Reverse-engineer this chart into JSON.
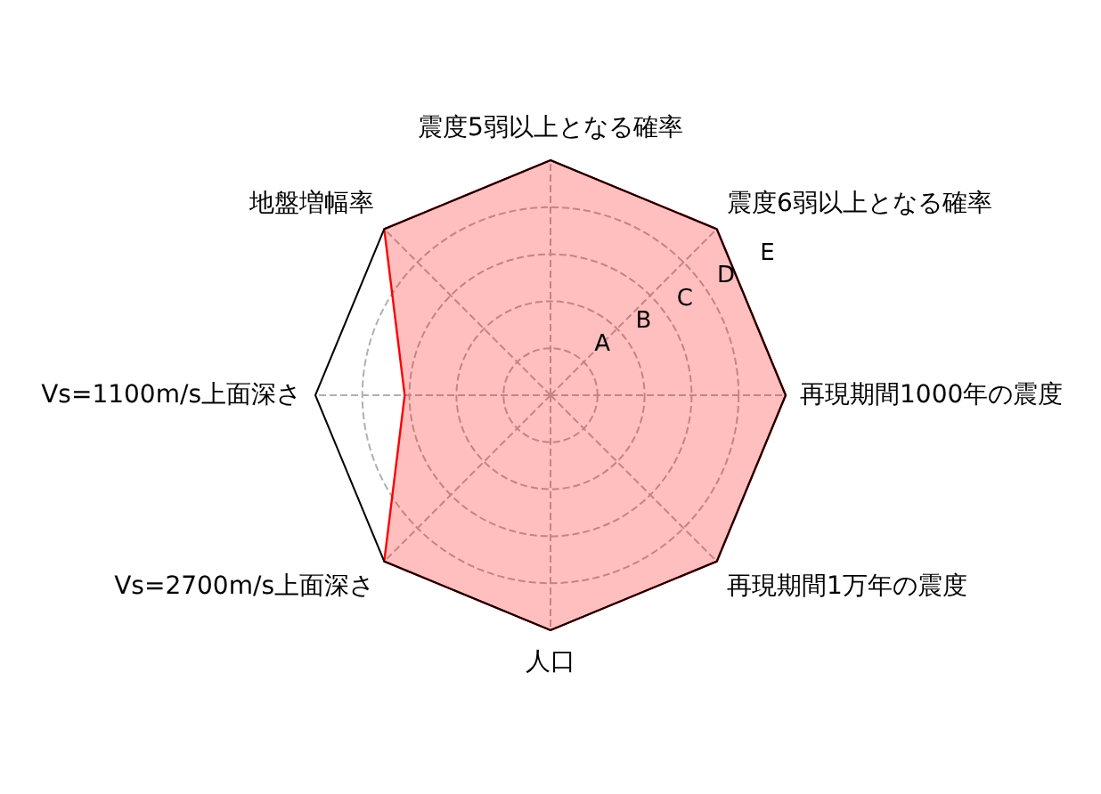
{
  "chart_data": {
    "type": "radar",
    "categories": [
      "震度5弱以上となる確率",
      "震度6弱以上となる確率",
      "再現期間1000年の震度",
      "再現期間1万年の震度",
      "人口",
      "Vs=2700m/s上面深さ",
      "Vs=1100m/s上面深さ",
      "地盤増幅率"
    ],
    "series": [
      {
        "color": "#ff0000",
        "values": [
          5,
          5,
          5,
          5,
          5,
          5,
          3.1,
          5
        ]
      }
    ],
    "ylim": [
      0,
      5
    ],
    "yticks": [
      {
        "value": 1,
        "label": "A"
      },
      {
        "value": 2,
        "label": "B"
      },
      {
        "value": 3,
        "label": "C"
      },
      {
        "value": 4,
        "label": "D"
      },
      {
        "value": 5,
        "label": "E"
      }
    ],
    "grid": true
  }
}
